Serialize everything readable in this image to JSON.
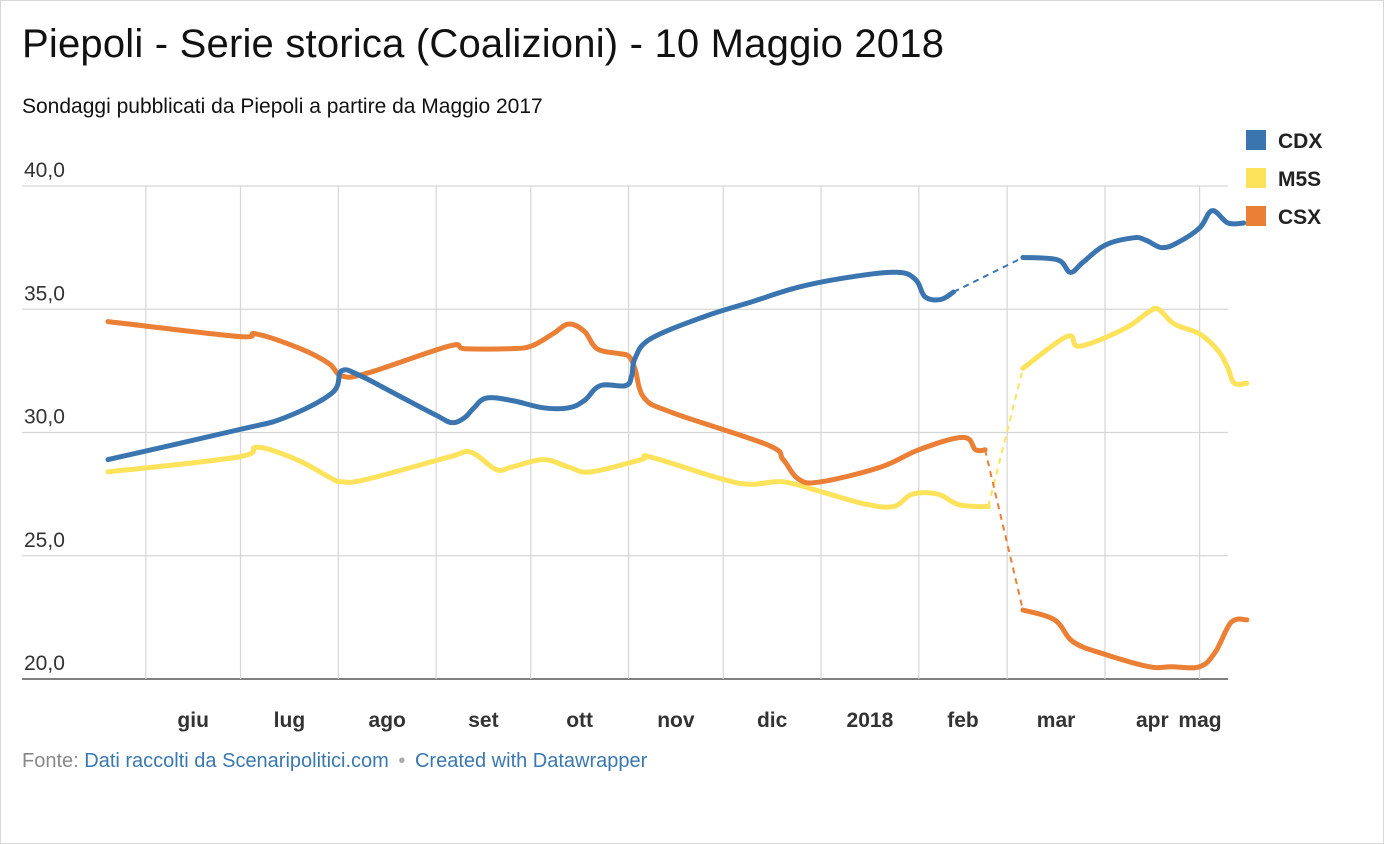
{
  "chart_data": {
    "type": "line",
    "title": "Piepoli - Serie storica (Coalizioni) - 10 Maggio 2018",
    "subtitle": "Sondaggi pubblicati da Piepoli a partire da Maggio 2017",
    "x_ticks": [
      "giu",
      "lug",
      "ago",
      "set",
      "ott",
      "nov",
      "dic",
      "2018",
      "feb",
      "mar",
      "apr",
      "mag"
    ],
    "x_range": [
      "2017-05-20",
      "2018-05-10"
    ],
    "y_ticks": [
      "20,0",
      "25,0",
      "30,0",
      "35,0",
      "40,0"
    ],
    "ylim": [
      20,
      40
    ],
    "grid": true,
    "legend_position": "top-right",
    "series": [
      {
        "name": "CDX",
        "color": "#3a75b0",
        "gap": {
          "from": "2018-02-15",
          "to": "2018-03-06"
        },
        "points": [
          [
            "2017-05-20",
            28.9
          ],
          [
            "2017-06-30",
            30.1
          ],
          [
            "2017-07-15",
            30.6
          ],
          [
            "2017-07-30",
            31.6
          ],
          [
            "2017-08-02",
            32.5
          ],
          [
            "2017-08-08",
            32.3
          ],
          [
            "2017-08-20",
            31.5
          ],
          [
            "2017-09-01",
            30.7
          ],
          [
            "2017-09-06",
            30.4
          ],
          [
            "2017-09-10",
            30.6
          ],
          [
            "2017-09-13",
            31.0
          ],
          [
            "2017-09-17",
            31.4
          ],
          [
            "2017-09-25",
            31.3
          ],
          [
            "2017-10-05",
            31.0
          ],
          [
            "2017-10-13",
            31.0
          ],
          [
            "2017-10-18",
            31.3
          ],
          [
            "2017-10-23",
            31.9
          ],
          [
            "2017-10-31",
            31.9
          ],
          [
            "2017-11-02",
            32.3
          ],
          [
            "2017-11-03",
            33.0
          ],
          [
            "2017-11-08",
            33.8
          ],
          [
            "2017-11-25",
            34.7
          ],
          [
            "2017-12-10",
            35.3
          ],
          [
            "2017-12-25",
            35.9
          ],
          [
            "2018-01-10",
            36.3
          ],
          [
            "2018-01-25",
            36.5
          ],
          [
            "2018-01-31",
            36.2
          ],
          [
            "2018-02-03",
            35.5
          ],
          [
            "2018-02-08",
            35.4
          ],
          [
            "2018-02-12",
            35.7
          ],
          [
            "2018-02-21",
            36.9
          ],
          [
            "2018-02-23",
            37.0
          ],
          [
            "2018-03-06",
            37.1
          ],
          [
            "2018-03-17",
            37.0
          ],
          [
            "2018-03-21",
            36.5
          ],
          [
            "2018-03-25",
            36.9
          ],
          [
            "2018-04-01",
            37.6
          ],
          [
            "2018-04-10",
            37.9
          ],
          [
            "2018-04-14",
            37.8
          ],
          [
            "2018-04-19",
            37.5
          ],
          [
            "2018-04-24",
            37.7
          ],
          [
            "2018-05-01",
            38.3
          ],
          [
            "2018-05-05",
            39.0
          ],
          [
            "2018-05-10",
            38.5
          ],
          [
            "2018-05-15",
            38.5
          ]
        ]
      },
      {
        "name": "M5S",
        "color": "#fde25c",
        "gap": {
          "from": "2018-02-23",
          "to": "2018-03-06"
        },
        "points": [
          [
            "2017-05-20",
            28.4
          ],
          [
            "2017-06-30",
            29.0
          ],
          [
            "2017-07-06",
            29.4
          ],
          [
            "2017-07-15",
            29.1
          ],
          [
            "2017-07-22",
            28.7
          ],
          [
            "2017-07-29",
            28.2
          ],
          [
            "2017-08-02",
            28.0
          ],
          [
            "2017-08-10",
            28.1
          ],
          [
            "2017-09-05",
            29.0
          ],
          [
            "2017-09-12",
            29.2
          ],
          [
            "2017-09-20",
            28.5
          ],
          [
            "2017-09-25",
            28.6
          ],
          [
            "2017-10-05",
            28.9
          ],
          [
            "2017-10-13",
            28.6
          ],
          [
            "2017-10-20",
            28.4
          ],
          [
            "2017-11-05",
            28.9
          ],
          [
            "2017-11-08",
            29.0
          ],
          [
            "2017-12-01",
            28.1
          ],
          [
            "2017-12-10",
            27.9
          ],
          [
            "2017-12-20",
            28.0
          ],
          [
            "2018-01-01",
            27.6
          ],
          [
            "2018-01-15",
            27.1
          ],
          [
            "2018-01-24",
            27.0
          ],
          [
            "2018-01-30",
            27.5
          ],
          [
            "2018-02-07",
            27.5
          ],
          [
            "2018-02-13",
            27.1
          ],
          [
            "2018-02-19",
            27.0
          ],
          [
            "2018-02-23",
            27.0
          ],
          [
            "2018-03-06",
            32.6
          ],
          [
            "2018-03-20",
            33.9
          ],
          [
            "2018-03-24",
            33.5
          ],
          [
            "2018-04-07",
            34.2
          ],
          [
            "2018-04-15",
            34.9
          ],
          [
            "2018-04-18",
            35.0
          ],
          [
            "2018-04-23",
            34.4
          ],
          [
            "2018-05-01",
            34.0
          ],
          [
            "2018-05-07",
            33.3
          ],
          [
            "2018-05-10",
            32.6
          ],
          [
            "2018-05-12",
            32.0
          ],
          [
            "2018-05-16",
            32.0
          ]
        ]
      },
      {
        "name": "CSX",
        "color": "#ea7f35",
        "gap": {
          "from": "2018-02-23",
          "to": "2018-03-06"
        },
        "points": [
          [
            "2017-05-20",
            34.5
          ],
          [
            "2017-06-30",
            33.9
          ],
          [
            "2017-07-06",
            34.0
          ],
          [
            "2017-07-20",
            33.4
          ],
          [
            "2017-07-29",
            32.8
          ],
          [
            "2017-08-02",
            32.3
          ],
          [
            "2017-08-10",
            32.4
          ],
          [
            "2017-09-05",
            33.5
          ],
          [
            "2017-09-10",
            33.4
          ],
          [
            "2017-09-24",
            33.4
          ],
          [
            "2017-10-01",
            33.5
          ],
          [
            "2017-10-08",
            34.0
          ],
          [
            "2017-10-13",
            34.4
          ],
          [
            "2017-10-18",
            34.1
          ],
          [
            "2017-10-22",
            33.4
          ],
          [
            "2017-10-29",
            33.2
          ],
          [
            "2017-11-01",
            33.1
          ],
          [
            "2017-11-03",
            32.6
          ],
          [
            "2017-11-06",
            31.4
          ],
          [
            "2017-11-15",
            30.8
          ],
          [
            "2017-12-15",
            29.5
          ],
          [
            "2017-12-20",
            28.9
          ],
          [
            "2017-12-25",
            28.1
          ],
          [
            "2018-01-01",
            28.0
          ],
          [
            "2018-01-20",
            28.6
          ],
          [
            "2018-02-01",
            29.3
          ],
          [
            "2018-02-15",
            29.8
          ],
          [
            "2018-02-19",
            29.3
          ],
          [
            "2018-02-22",
            29.3
          ],
          [
            "2018-03-06",
            22.8
          ],
          [
            "2018-03-16",
            22.4
          ],
          [
            "2018-03-22",
            21.5
          ],
          [
            "2018-04-01",
            21.0
          ],
          [
            "2018-04-15",
            20.5
          ],
          [
            "2018-04-22",
            20.5
          ],
          [
            "2018-05-01",
            20.5
          ],
          [
            "2018-05-06",
            21.1
          ],
          [
            "2018-05-11",
            22.3
          ],
          [
            "2018-05-16",
            22.4
          ]
        ]
      }
    ]
  },
  "footer": {
    "source_label": "Fonte:",
    "source_link": "Dati raccolti da Scenaripolitici.com",
    "separator": "•",
    "credit_link": "Created with Datawrapper"
  }
}
